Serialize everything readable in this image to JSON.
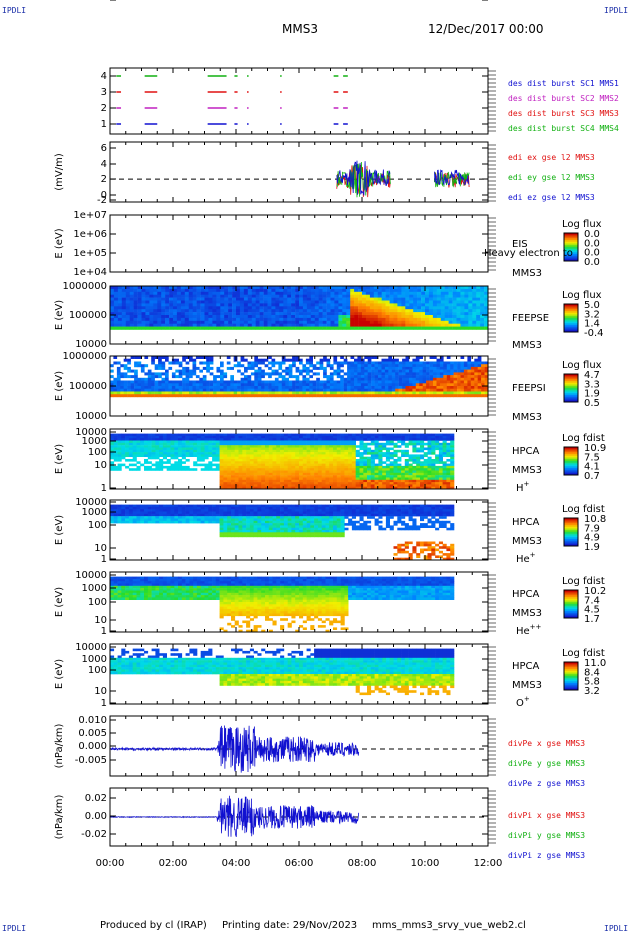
{
  "corner_label": "IPDLI",
  "title": "MMS3",
  "date_title": "12/Dec/2017 00:00",
  "footer": {
    "produced": "Produced by cl (IRAP)",
    "printing": "Printing date: 29/Nov/2023",
    "file": "mms_mms3_srvy_vue_web2.cl"
  },
  "x_ticks": [
    "00:00",
    "02:00",
    "04:00",
    "06:00",
    "08:00",
    "10:00",
    "12:00"
  ],
  "chart_data": [
    {
      "type": "scatter",
      "panel": "burst",
      "y_ticks": [
        "4",
        "3",
        "2",
        "1"
      ],
      "legend": [
        {
          "text": "des dist burst SC1 MMS1",
          "color": "#1010d0"
        },
        {
          "text": "des dist burst SC2 MMS2",
          "color": "#c020c0"
        },
        {
          "text": "des dist burst SC3 MMS3",
          "color": "#e01010"
        },
        {
          "text": "des dist burst SC4 MMS4",
          "color": "#10b010"
        }
      ],
      "segments_hours": [
        [
          0.2,
          0.35
        ],
        [
          1.1,
          1.5
        ],
        [
          3.1,
          3.7
        ],
        [
          3.95,
          4.05
        ],
        [
          4.35,
          4.4
        ],
        [
          5.4,
          5.45
        ],
        [
          7.1,
          7.25
        ],
        [
          7.4,
          7.55
        ]
      ]
    },
    {
      "type": "line",
      "panel": "edi",
      "ylabel": "(mV/m)",
      "y_ticks": [
        "6",
        "4",
        "2",
        "0",
        "-2",
        "-4"
      ],
      "ylim": [
        -4,
        6.5
      ],
      "legend": [
        {
          "text": "edi ex gse l2 MMS3",
          "color": "#e01010"
        },
        {
          "text": "edi ey gse l2 MMS3",
          "color": "#10b010"
        },
        {
          "text": "edi ez gse l2 MMS3",
          "color": "#1010d0"
        }
      ],
      "active_hours": [
        [
          7.2,
          8.9
        ],
        [
          10.3,
          11.4
        ]
      ]
    },
    {
      "type": "heatmap",
      "panel": "eis",
      "ylabel": "E (eV)",
      "y_ticks": [
        "1e+07",
        "1e+06",
        "1e+05",
        "1e+04"
      ],
      "instrument": "EIS",
      "species": "Heavy electron to",
      "spacecraft": "MMS3",
      "colorbar_title": "Log flux",
      "colorbar_ticks": [
        "0.0",
        "0.0",
        "0.0",
        "0.0"
      ]
    },
    {
      "type": "heatmap",
      "panel": "feepse",
      "ylabel": "E (eV)",
      "y_ticks": [
        "1000000",
        "100000",
        "10000"
      ],
      "instrument": "FEEPSE",
      "spacecraft": "MMS3",
      "colorbar_title": "Log flux",
      "colorbar_ticks": [
        "5.0",
        "3.2",
        "1.4",
        "-0.4"
      ]
    },
    {
      "type": "heatmap",
      "panel": "feepsi",
      "ylabel": "E (eV)",
      "y_ticks": [
        "1000000",
        "100000",
        "10000"
      ],
      "instrument": "FEEPSI",
      "spacecraft": "MMS3",
      "colorbar_title": "Log flux",
      "colorbar_ticks": [
        "4.7",
        "3.3",
        "1.9",
        "0.5"
      ]
    },
    {
      "type": "heatmap",
      "panel": "hpca_h",
      "ylabel": "E (eV)",
      "y_ticks": [
        "10000",
        "1000",
        "100",
        "10",
        "1"
      ],
      "instrument": "HPCA",
      "spacecraft": "MMS3",
      "species_base": "H",
      "species_sup": "+",
      "colorbar_title": "Log fdist",
      "colorbar_ticks": [
        "10.9",
        "7.5",
        "4.1",
        "0.7"
      ]
    },
    {
      "type": "heatmap",
      "panel": "hpca_he",
      "ylabel": "E (eV)",
      "y_ticks": [
        "10000",
        "1000",
        "100",
        "10",
        "1"
      ],
      "instrument": "HPCA",
      "spacecraft": "MMS3",
      "species_base": "He",
      "species_sup": "+",
      "colorbar_title": "Log fdist",
      "colorbar_ticks": [
        "10.8",
        "7.9",
        "4.9",
        "1.9"
      ]
    },
    {
      "type": "heatmap",
      "panel": "hpca_he2",
      "ylabel": "E (eV)",
      "y_ticks": [
        "10000",
        "1000",
        "100",
        "10",
        "1"
      ],
      "instrument": "HPCA",
      "spacecraft": "MMS3",
      "species_base": "He",
      "species_sup": "++",
      "colorbar_title": "Log fdist",
      "colorbar_ticks": [
        "10.2",
        "7.4",
        "4.5",
        "1.7"
      ]
    },
    {
      "type": "heatmap",
      "panel": "hpca_o",
      "ylabel": "E (eV)",
      "y_ticks": [
        "10000",
        "1000",
        "100",
        "10",
        "1"
      ],
      "instrument": "HPCA",
      "spacecraft": "MMS3",
      "species_base": "O",
      "species_sup": "+",
      "colorbar_title": "Log fdist",
      "colorbar_ticks": [
        "11.0",
        "8.4",
        "5.8",
        "3.2"
      ]
    },
    {
      "type": "line",
      "panel": "divpe",
      "ylabel": "(nPa/km)",
      "y_ticks": [
        "0.010",
        "0.005",
        "0.000",
        "-0.005"
      ],
      "ylim": [
        -0.009,
        0.011
      ],
      "legend": [
        {
          "text": "divPe x gse MMS3",
          "color": "#e01010"
        },
        {
          "text": "divPe y gse MMS3",
          "color": "#10b010"
        },
        {
          "text": "divPe z gse MMS3",
          "color": "#1010d0"
        }
      ],
      "active_hours": [
        0.0,
        7.9
      ]
    },
    {
      "type": "line",
      "panel": "divpi",
      "ylabel": "(nPa/km)",
      "y_ticks": [
        "0.02",
        "0.00",
        "-0.02"
      ],
      "ylim": [
        -0.03,
        0.03
      ],
      "legend": [
        {
          "text": "divPi x gse MMS3",
          "color": "#e01010"
        },
        {
          "text": "divPi y gse MMS3",
          "color": "#10b010"
        },
        {
          "text": "divPi z gse MMS3",
          "color": "#1010d0"
        }
      ],
      "active_hours": [
        0.0,
        7.9
      ]
    }
  ]
}
